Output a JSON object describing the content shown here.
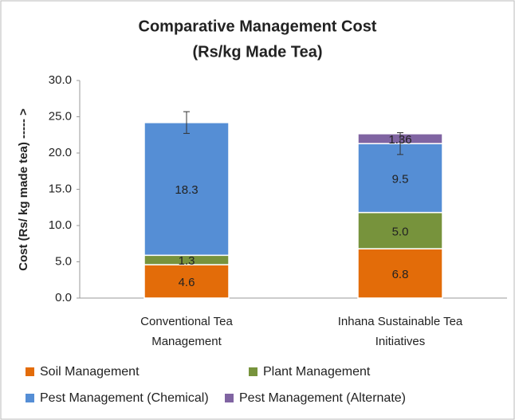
{
  "chart_data": {
    "type": "stacked-bar",
    "title": [
      "Comparative Management Cost",
      "(Rs/kg Made Tea)"
    ],
    "y_label": "Cost (Rs/ kg made tea) ----- >",
    "categories": [
      [
        "Conventional Tea",
        "Management"
      ],
      [
        "Inhana Sustainable Tea",
        "Initiatives"
      ]
    ],
    "series": [
      {
        "name": "Soil  Management",
        "color": "#e36c09",
        "values": [
          4.6,
          6.8
        ]
      },
      {
        "name": "Plant Management",
        "color": "#77933c",
        "values": [
          1.3,
          5.0
        ],
        "value_labels": [
          "1.3",
          "5.0"
        ]
      },
      {
        "name": "Pest Management (Chemical)",
        "color": "#558ed5",
        "values": [
          18.3,
          9.5
        ],
        "errors": [
          1.5,
          1.5
        ]
      },
      {
        "name": "Pest Management (Alternate)",
        "color": "#8064a2",
        "values": [
          null,
          1.36
        ]
      }
    ],
    "ylim": [
      0,
      30
    ],
    "yticks": [
      {
        "value": 0,
        "label": "0.0"
      },
      {
        "value": 5,
        "label": "5.0"
      },
      {
        "value": 10,
        "label": "10.0"
      },
      {
        "value": 15,
        "label": "15.0"
      },
      {
        "value": 20,
        "label": "20.0"
      },
      {
        "value": 25,
        "label": "25.0"
      },
      {
        "value": 30,
        "label": "30.0"
      }
    ],
    "grid": false,
    "legend": "bottom"
  }
}
